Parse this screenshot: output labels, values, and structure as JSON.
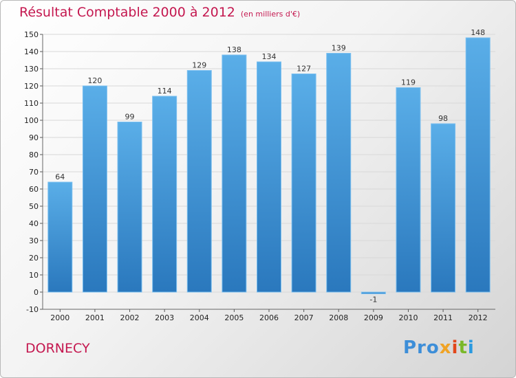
{
  "title": "Résultat Comptable 2000 à 2012",
  "unit_label": "(en milliers d'€)",
  "commune": "DORNECY",
  "logo": {
    "text": "Proxiti",
    "parts": [
      "Pro",
      "x",
      "i",
      "t",
      "i"
    ]
  },
  "colors": {
    "bar": "#4a9ee0",
    "bar_dark": "#2a78bd",
    "title": "#c4174f",
    "grid": "#d8d8d8"
  },
  "chart_data": {
    "type": "bar",
    "title": "Résultat Comptable 2000 à 2012",
    "subtitle": "(en milliers d'€)",
    "categories": [
      "2000",
      "2001",
      "2002",
      "2003",
      "2004",
      "2005",
      "2006",
      "2007",
      "2008",
      "2009",
      "2010",
      "2011",
      "2012"
    ],
    "values": [
      64,
      120,
      99,
      114,
      129,
      138,
      134,
      127,
      139,
      -1,
      119,
      98,
      148
    ],
    "data_labels": [
      "64",
      "120",
      "99",
      "114",
      "129",
      "138",
      "134",
      "127",
      "139",
      "-1",
      "119",
      "98",
      "148"
    ],
    "ylim": [
      -10,
      150
    ],
    "yticks": [
      -10,
      0,
      10,
      20,
      30,
      40,
      50,
      60,
      70,
      80,
      90,
      100,
      110,
      120,
      130,
      140,
      150
    ],
    "ytick_labels": [
      "-10",
      "0",
      "10",
      "20",
      "30",
      "40",
      "50",
      "60",
      "70",
      "80",
      "90",
      "100",
      "110",
      "120",
      "130",
      "140",
      "150"
    ],
    "grid": true,
    "legend": "none"
  }
}
